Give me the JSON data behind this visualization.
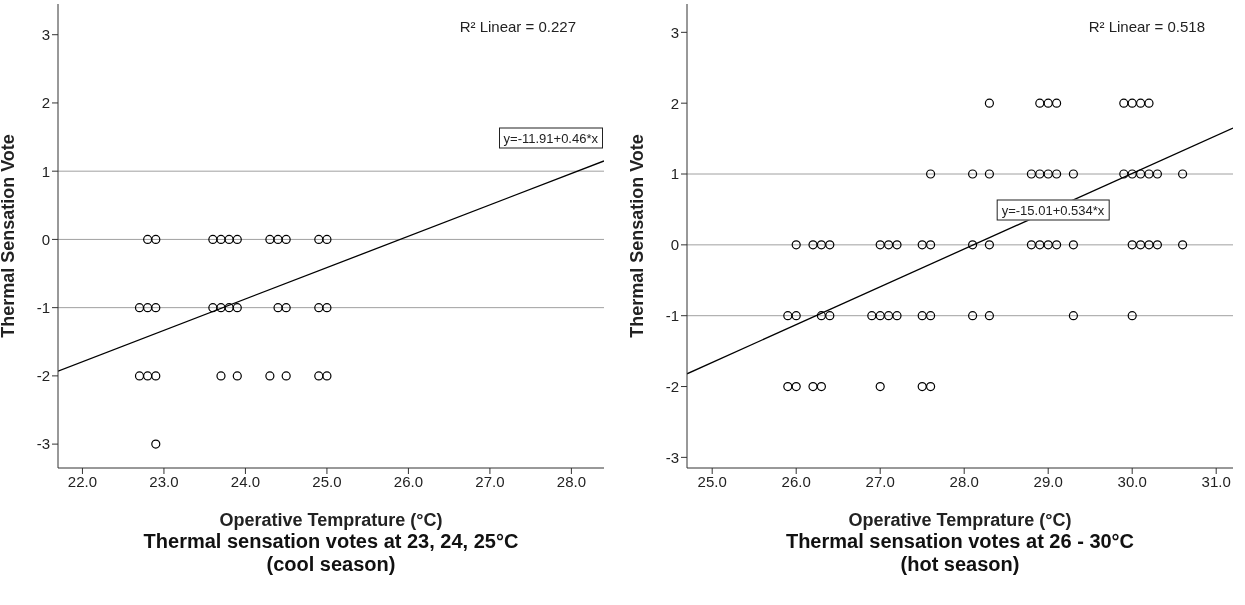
{
  "chart_data": [
    {
      "type": "scatter",
      "title": "Thermal sensation votes at 23, 24, 25°C\n(cool season)",
      "xlabel": "Operative Temprature (°C)",
      "ylabel": "Thermal Sensation Vote",
      "xlim": [
        21.7,
        28.4
      ],
      "xticks": [
        {
          "value": 22,
          "label": "22.0"
        },
        {
          "value": 23,
          "label": "23.0"
        },
        {
          "value": 24,
          "label": "24.0"
        },
        {
          "value": 25,
          "label": "25.0"
        },
        {
          "value": 26,
          "label": "26.0"
        },
        {
          "value": 27,
          "label": "27.0"
        },
        {
          "value": 28,
          "label": "28.0"
        }
      ],
      "ylim": [
        -3.35,
        3.45
      ],
      "yticks": [
        -3,
        -2,
        -1,
        0,
        1,
        2,
        3
      ],
      "ref_lines": [
        {
          "axis": "y",
          "value": 1,
          "color": "#a0a0a0"
        },
        {
          "axis": "y",
          "value": 0,
          "color": "#a0a0a0"
        },
        {
          "axis": "y",
          "value": -1,
          "color": "#a0a0a0"
        }
      ],
      "annotations": [
        "R² Linear = 0.227",
        "y=-11.91+0.46*x"
      ],
      "series": [
        {
          "color": "#000000",
          "marker": "circle",
          "x": [
            22.8,
            22.9,
            23.6,
            23.7,
            23.8,
            23.9,
            24.3,
            24.4,
            24.5,
            24.9,
            25.0,
            22.7,
            22.8,
            22.9,
            23.6,
            23.7,
            23.8,
            23.9,
            24.4,
            24.5,
            24.9,
            25.0,
            22.7,
            22.8,
            22.9,
            23.7,
            23.9,
            24.3,
            24.5,
            24.9,
            25.0,
            22.9
          ],
          "values": [
            0,
            0,
            0,
            0,
            0,
            0,
            0,
            0,
            0,
            0,
            0,
            -1,
            -1,
            -1,
            -1,
            -1,
            -1,
            -1,
            -1,
            -1,
            -1,
            -1,
            -2,
            -2,
            -2,
            -2,
            -2,
            -2,
            -2,
            -2,
            -2,
            -3
          ]
        },
        {
          "type": "line",
          "color": "#000000",
          "marker": "none",
          "x": [
            21.7,
            28.4
          ],
          "values": [
            -1.93,
            1.15
          ]
        }
      ]
    },
    {
      "type": "scatter",
      "title": "Thermal sensation votes at 26 - 30°C\n(hot season)",
      "xlabel": "Operative Temprature (°C)",
      "ylabel": "Thermal Sensation Vote",
      "xlim": [
        24.7,
        31.2
      ],
      "xticks": [
        {
          "value": 25,
          "label": "25.0"
        },
        {
          "value": 26,
          "label": "26.0"
        },
        {
          "value": 27,
          "label": "27.0"
        },
        {
          "value": 28,
          "label": "28.0"
        },
        {
          "value": 29,
          "label": "29.0"
        },
        {
          "value": 30,
          "label": "30.0"
        },
        {
          "value": 31,
          "label": "31.0"
        }
      ],
      "ylim": [
        -3.15,
        3.4
      ],
      "yticks": [
        -3,
        -2,
        -1,
        0,
        1,
        2,
        3
      ],
      "ref_lines": [
        {
          "axis": "y",
          "value": 1,
          "color": "#a0a0a0"
        },
        {
          "axis": "y",
          "value": 0,
          "color": "#a0a0a0"
        },
        {
          "axis": "y",
          "value": -1,
          "color": "#a0a0a0"
        }
      ],
      "annotations": [
        "R² Linear = 0.518",
        "y=-15.01+0.534*x"
      ],
      "series": [
        {
          "color": "#000000",
          "marker": "circle",
          "x": [
            28.3,
            28.9,
            29.0,
            29.1,
            29.9,
            30.0,
            30.1,
            30.2,
            27.6,
            28.1,
            28.3,
            28.8,
            28.9,
            29.0,
            29.1,
            29.3,
            29.9,
            30.0,
            30.1,
            30.2,
            30.3,
            30.6,
            26.0,
            26.2,
            26.3,
            26.4,
            27.0,
            27.1,
            27.2,
            27.5,
            27.6,
            28.1,
            28.3,
            28.8,
            28.9,
            29.0,
            29.1,
            29.3,
            30.0,
            30.1,
            30.2,
            30.3,
            30.6,
            25.9,
            26.0,
            26.3,
            26.4,
            26.9,
            27.0,
            27.1,
            27.2,
            27.5,
            27.6,
            28.1,
            28.3,
            29.3,
            30.0,
            25.9,
            26.0,
            26.2,
            26.3,
            27.0,
            27.5,
            27.6
          ],
          "values": [
            2,
            2,
            2,
            2,
            2,
            2,
            2,
            2,
            1,
            1,
            1,
            1,
            1,
            1,
            1,
            1,
            1,
            1,
            1,
            1,
            1,
            1,
            0,
            0,
            0,
            0,
            0,
            0,
            0,
            0,
            0,
            0,
            0,
            0,
            0,
            0,
            0,
            0,
            0,
            0,
            0,
            0,
            0,
            -1,
            -1,
            -1,
            -1,
            -1,
            -1,
            -1,
            -1,
            -1,
            -1,
            -1,
            -1,
            -1,
            -1,
            -2,
            -2,
            -2,
            -2,
            -2,
            -2,
            -2
          ]
        },
        {
          "type": "line",
          "color": "#000000",
          "marker": "none",
          "x": [
            24.7,
            31.2
          ],
          "values": [
            -1.82,
            1.65
          ]
        }
      ]
    }
  ]
}
